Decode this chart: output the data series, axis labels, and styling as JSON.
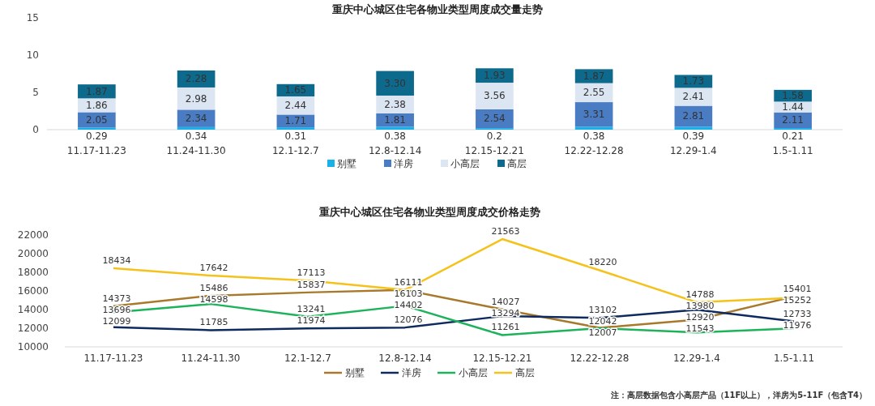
{
  "chart_data": [
    {
      "type": "bar",
      "stacked": true,
      "title": "重庆中心城区住宅各物业类型周度成交量走势",
      "categories": [
        "11.17-11.23",
        "11.24-11.30",
        "12.1-12.7",
        "12.8-12.14",
        "12.15-12.21",
        "12.22-12.28",
        "12.29-1.4",
        "1.5-1.11"
      ],
      "ylim": [
        0,
        15
      ],
      "yticks": [
        0,
        5,
        10,
        15
      ],
      "grid": false,
      "legend": "bottom",
      "series": [
        {
          "name": "别墅",
          "color": "#1ab0e8",
          "values": [
            0.29,
            0.34,
            0.31,
            0.38,
            0.2,
            0.38,
            0.39,
            0.21
          ],
          "value_labels": [
            "0.29",
            "0.34",
            "0.31",
            "0.38",
            "0.2",
            "0.38",
            "0.39",
            "0.21"
          ]
        },
        {
          "name": "洋房",
          "color": "#4a7cc4",
          "values": [
            2.05,
            2.34,
            1.71,
            1.81,
            2.54,
            3.31,
            2.81,
            2.11
          ],
          "value_labels": [
            "2.05",
            "2.34",
            "1.71",
            "1.81",
            "2.54",
            "3.31",
            "2.81",
            "2.11"
          ]
        },
        {
          "name": "小高层",
          "color": "#dce6f2",
          "values": [
            1.86,
            2.98,
            2.44,
            2.38,
            3.56,
            2.55,
            2.41,
            1.44
          ],
          "value_labels": [
            "1.86",
            "2.98",
            "2.44",
            "2.38",
            "3.56",
            "2.55",
            "2.41",
            "1.44"
          ]
        },
        {
          "name": "高层",
          "color": "#0e6a8c",
          "values": [
            1.87,
            2.28,
            1.65,
            3.3,
            1.93,
            1.87,
            1.73,
            1.58
          ],
          "value_labels": [
            "1.87",
            "2.28",
            "1.65",
            "3.30",
            "1.93",
            "1.87",
            "1.73",
            "1.58"
          ]
        }
      ]
    },
    {
      "type": "line",
      "title": "重庆中心城区住宅各物业类型周度成交价格走势",
      "categories": [
        "11.17-11.23",
        "11.24-11.30",
        "12.1-12.7",
        "12.8-12.14",
        "12.15-12.21",
        "12.22-12.28",
        "12.29-1.4",
        "1.5-1.11"
      ],
      "ylim": [
        10000,
        22000
      ],
      "yticks": [
        10000,
        12000,
        14000,
        16000,
        18000,
        20000,
        22000
      ],
      "grid": false,
      "legend": "bottom",
      "marker": "none",
      "data_labels": true,
      "series": [
        {
          "name": "别墅",
          "color": "#a8792a",
          "values": [
            14373,
            15486,
            15837,
            16103,
            14027,
            12042,
            12920,
            15401
          ]
        },
        {
          "name": "洋房",
          "color": "#0e2a5e",
          "values": [
            12099,
            11785,
            11974,
            12076,
            13294,
            13102,
            13980,
            12733
          ]
        },
        {
          "name": "小高层",
          "color": "#1db35a",
          "values": [
            13696,
            14598,
            13241,
            14402,
            11261,
            12007,
            11543,
            11976
          ]
        },
        {
          "name": "高层",
          "color": "#f5c21b",
          "values": [
            18434,
            17642,
            17113,
            16111,
            21563,
            18220,
            14788,
            15252
          ]
        }
      ],
      "annotations": [
        "注：高层数据包含小高层产品（11F以上），洋房为5-11F（包含T4）"
      ]
    }
  ]
}
